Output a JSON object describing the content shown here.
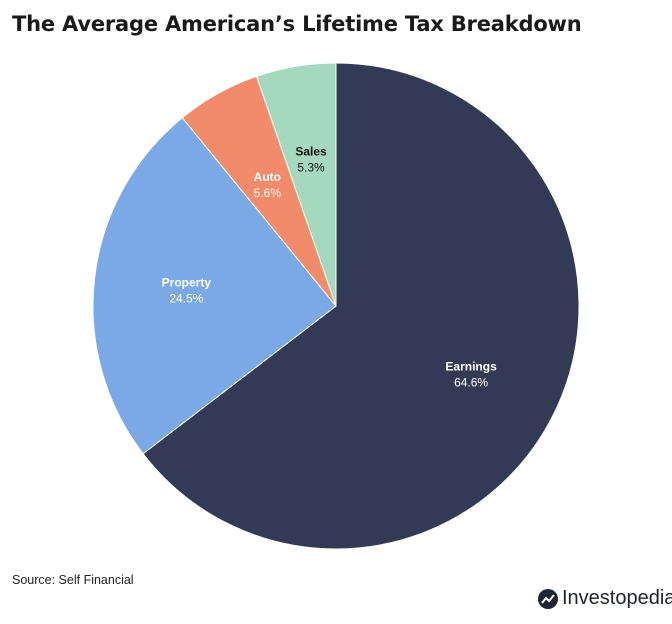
{
  "title": "The Average American’s Lifetime Tax Breakdown",
  "source": "Source: Self Financial",
  "brand": "Investopedia",
  "brand_icon": "investopedia-logo-icon",
  "chart_data": {
    "type": "pie",
    "start_angle_deg": 0,
    "direction": "clockwise",
    "slices": [
      {
        "label": "Earnings",
        "value": 64.6,
        "display": "64.6%",
        "color": "#333a55",
        "text_color": "#ffffff"
      },
      {
        "label": "Property",
        "value": 24.5,
        "display": "24.5%",
        "color": "#7ba9e6",
        "text_color": "#ffffff"
      },
      {
        "label": "Auto",
        "value": 5.6,
        "display": "5.6%",
        "color": "#f28b6a",
        "text_color": "#ffffff"
      },
      {
        "label": "Sales",
        "value": 5.3,
        "display": "5.3%",
        "color": "#a4d9bd",
        "text_color": "#111111"
      }
    ]
  }
}
